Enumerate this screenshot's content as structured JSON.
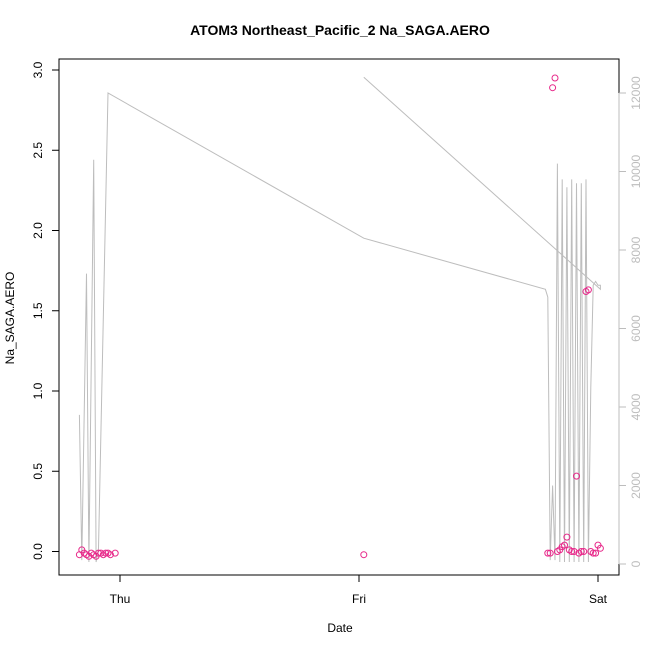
{
  "chart_data": {
    "type": "scatter",
    "title": "ATOM3 Northeast_Pacific_2 Na_SAGA.AERO",
    "xlabel": "Date",
    "ylabel": "Na_SAGA.AERO",
    "x_ticks": [
      "Thu",
      "Fri",
      "Sat"
    ],
    "ylim": [
      0,
      3.0
    ],
    "y_ticks": [
      "0.0",
      "0.5",
      "1.0",
      "1.5",
      "2.0",
      "2.5",
      "3.0"
    ],
    "y2lim": [
      0,
      12000
    ],
    "y2_ticks": [
      "0",
      "2000",
      "4000",
      "6000",
      "8000",
      "10000",
      "12000"
    ],
    "grid": false,
    "colors": {
      "points": "#e7298a",
      "line": "#bdbdbd",
      "axis": "#000000",
      "right_axis": "#bdbdbd"
    },
    "series": [
      {
        "kind": "points",
        "axis": "left",
        "x_days": [
          -0.17,
          -0.16,
          -0.15,
          -0.14,
          -0.13,
          -0.12,
          -0.11,
          -0.1,
          -0.09,
          -0.08,
          -0.07,
          -0.06,
          -0.05,
          -0.04,
          -0.02,
          1.02,
          1.79,
          1.8,
          1.81,
          1.82,
          1.83,
          1.84,
          1.85,
          1.86,
          1.87,
          1.88,
          1.89,
          1.9,
          1.91,
          1.92,
          1.93,
          1.94,
          1.95,
          1.96,
          1.97,
          1.98,
          1.99,
          2.0,
          2.01
        ],
        "values": [
          -0.02,
          0.01,
          -0.01,
          -0.02,
          -0.03,
          -0.01,
          -0.02,
          -0.03,
          -0.01,
          -0.01,
          -0.02,
          -0.01,
          -0.01,
          -0.02,
          -0.01,
          -0.02,
          -0.01,
          -0.01,
          2.89,
          2.95,
          0.0,
          0.01,
          0.03,
          0.04,
          0.09,
          0.01,
          0.0,
          0.0,
          0.47,
          -0.01,
          0.0,
          0.0,
          1.62,
          1.63,
          0.0,
          -0.01,
          -0.01,
          0.04,
          0.02
        ]
      },
      {
        "kind": "line",
        "axis": "right",
        "x_days": [
          -0.17,
          -0.16,
          -0.14,
          -0.13,
          -0.11,
          -0.1,
          -0.09,
          -0.05,
          1.02,
          1.78,
          1.79,
          1.8,
          1.81,
          1.82,
          1.83,
          1.84,
          1.85,
          1.86,
          1.87,
          1.88,
          1.89,
          1.9,
          1.91,
          1.92,
          1.93,
          1.94,
          1.95,
          1.96,
          1.97,
          1.98,
          1.99,
          2.0,
          2.01,
          2.01,
          1.02
        ],
        "values": [
          3800,
          100,
          7400,
          50,
          10300,
          50,
          400,
          12000,
          8300,
          7000,
          6800,
          100,
          2000,
          100,
          10200,
          50,
          9800,
          50,
          9600,
          50,
          9800,
          50,
          9700,
          50,
          9700,
          50,
          9800,
          50,
          4500,
          7100,
          7200,
          7100,
          7100,
          7000,
          12400
        ]
      }
    ]
  }
}
